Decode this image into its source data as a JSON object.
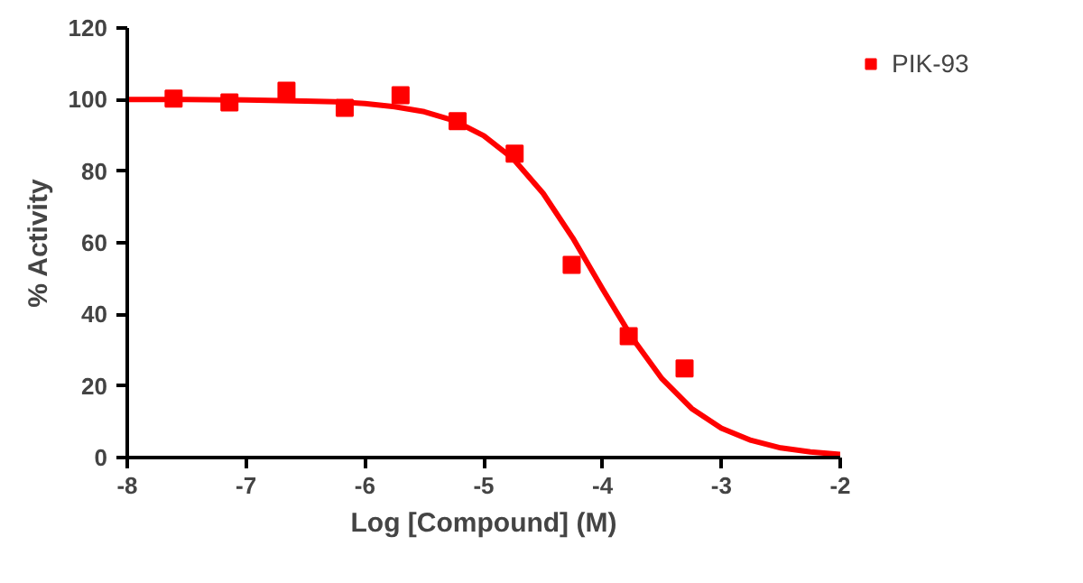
{
  "chart_data": {
    "type": "scatter",
    "xlabel": "Log [Compound] (M)",
    "ylabel": "% Activity",
    "xlim": [
      -8,
      -2
    ],
    "ylim": [
      0,
      120
    ],
    "xticks": [
      -8,
      -7,
      -6,
      -5,
      -4,
      -3,
      -2
    ],
    "yticks": [
      0,
      20,
      40,
      60,
      80,
      100,
      120
    ],
    "grid": false,
    "legend": "top right",
    "series": [
      {
        "name": "PIK-93",
        "color": "#ff0000",
        "marker": "square",
        "x": [
          -7.61,
          -7.14,
          -6.66,
          -6.17,
          -5.7,
          -5.22,
          -4.74,
          -4.26,
          -3.78,
          -3.31
        ],
        "values": [
          100.3,
          99.2,
          102.5,
          97.7,
          101.2,
          94.0,
          84.9,
          53.8,
          33.9,
          24.9
        ]
      },
      {
        "color": "#ff0000",
        "type": "line",
        "line_style": "solid",
        "x": [
          -8,
          -7.5,
          -7,
          -6.5,
          -6.25,
          -6,
          -5.75,
          -5.5,
          -5.25,
          -5,
          -4.75,
          -4.5,
          -4.25,
          -4,
          -3.75,
          -3.5,
          -3.25,
          -3,
          -2.75,
          -2.5,
          -2.25,
          -2
        ],
        "values": [
          100.0,
          100.0,
          99.9,
          99.6,
          99.4,
          98.9,
          98.0,
          96.6,
          94.1,
          89.9,
          83.4,
          73.8,
          61.3,
          47.1,
          33.4,
          22.0,
          13.7,
          8.2,
          4.8,
          2.7,
          1.6,
          0.9
        ]
      }
    ]
  }
}
